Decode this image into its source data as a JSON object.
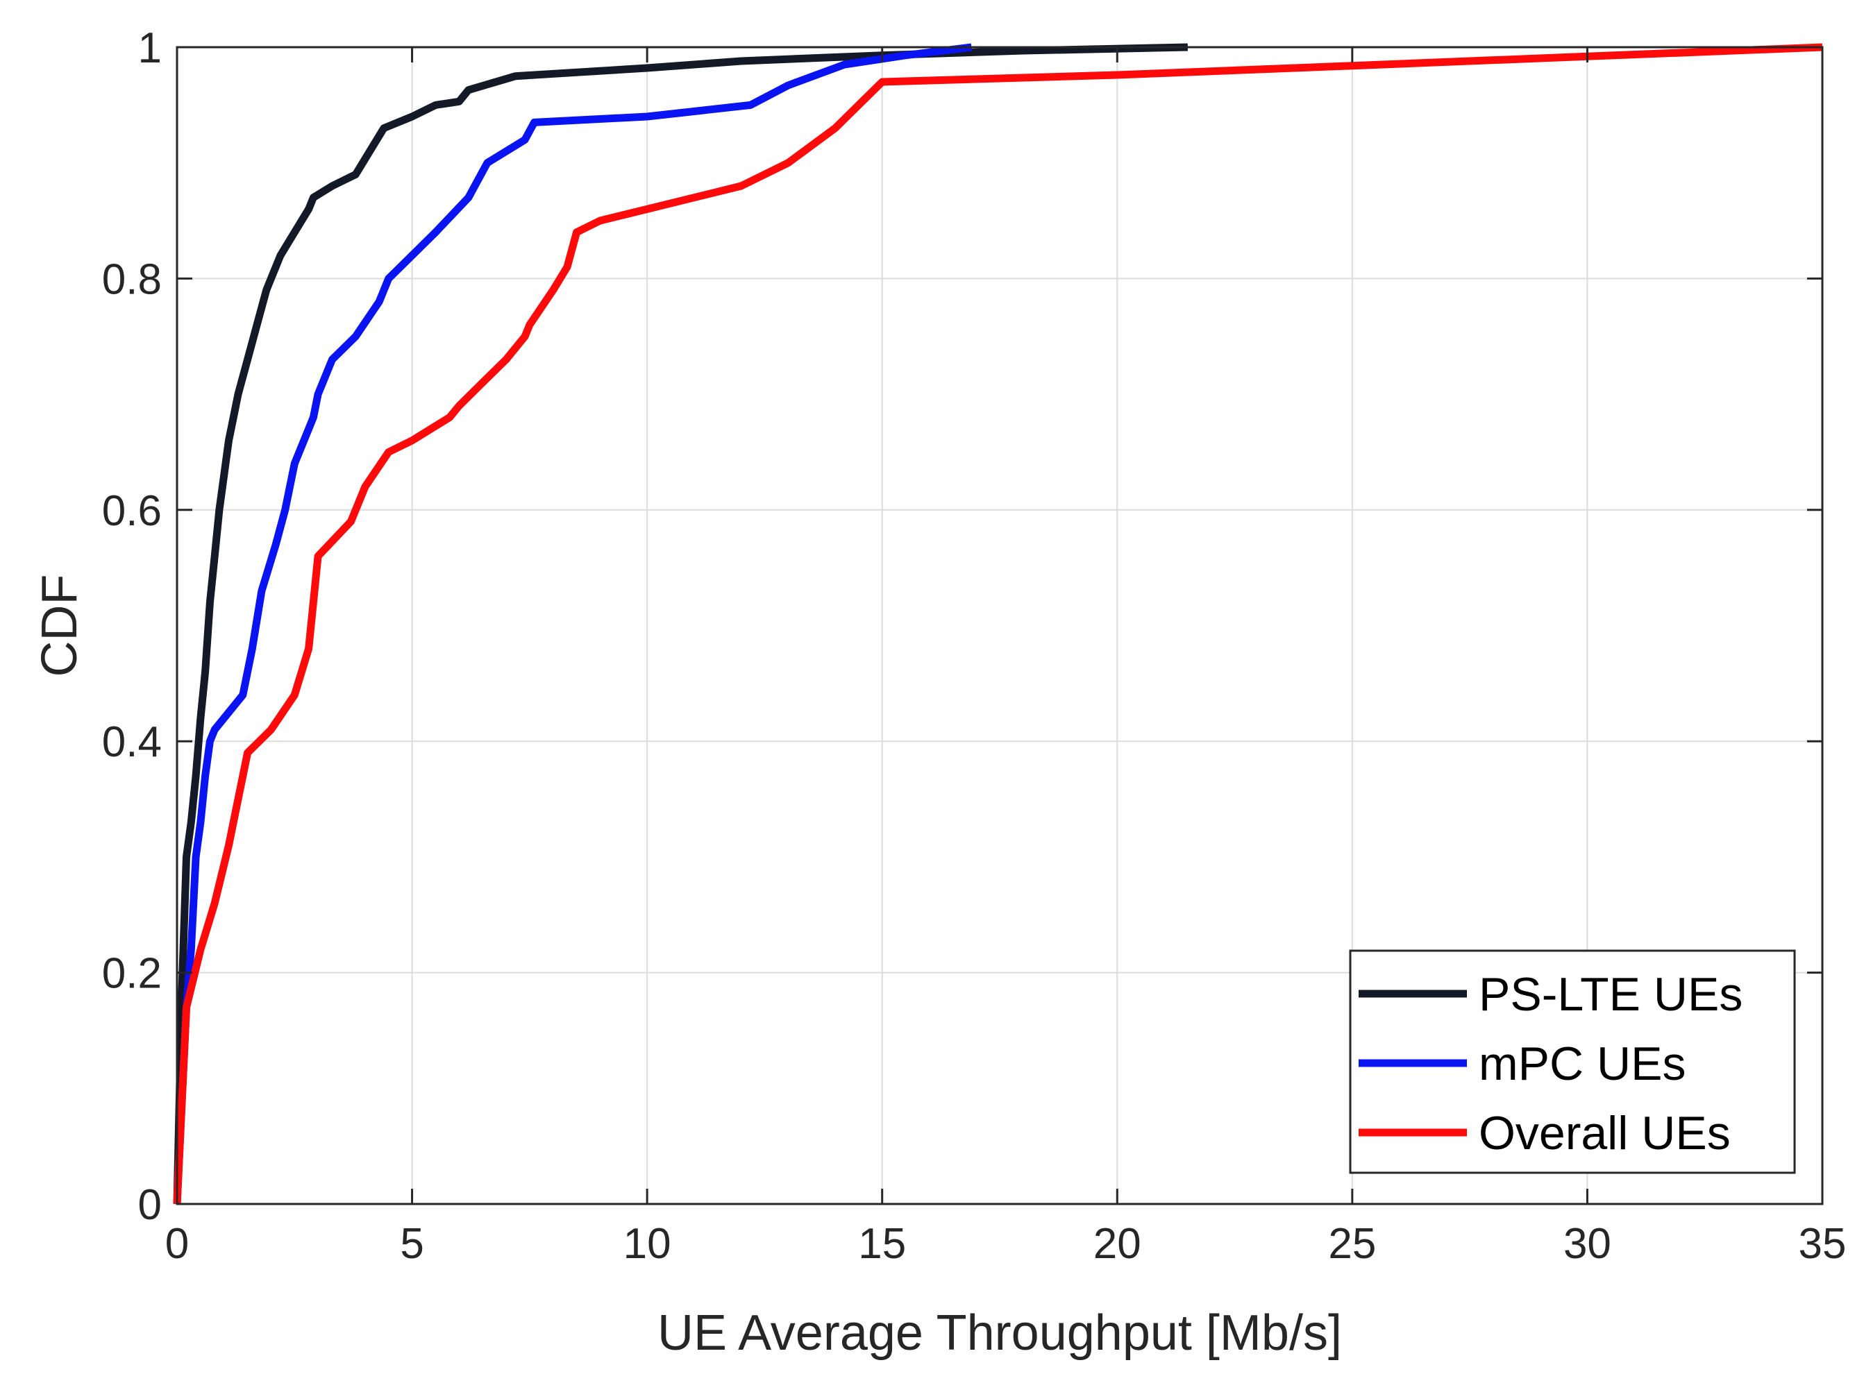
{
  "chart_data": {
    "type": "line",
    "title": "",
    "xlabel": "UE Average Throughput [Mb/s]",
    "ylabel": "CDF",
    "xlim": [
      0,
      35
    ],
    "ylim": [
      0,
      1
    ],
    "xticks": [
      0,
      5,
      10,
      15,
      20,
      25,
      30,
      35
    ],
    "yticks": [
      0,
      0.2,
      0.4,
      0.6,
      0.8,
      1
    ],
    "xtick_labels": [
      "0",
      "5",
      "10",
      "15",
      "20",
      "25",
      "30",
      "35"
    ],
    "ytick_labels": [
      "0",
      "0.2",
      "0.4",
      "0.6",
      "0.8",
      "1"
    ],
    "grid": true,
    "legend_position": "bottom-right",
    "series": [
      {
        "name": "PS-LTE UEs",
        "color": "#141927",
        "x": [
          0,
          0.1,
          0.2,
          0.3,
          0.4,
          0.5,
          0.6,
          0.7,
          0.8,
          0.9,
          1.0,
          1.1,
          1.2,
          1.3,
          1.5,
          1.7,
          1.9,
          2.0,
          2.2,
          2.5,
          2.8,
          2.9,
          3.3,
          3.8,
          4.1,
          4.4,
          5.0,
          5.5,
          6.0,
          6.2,
          7.2,
          10.0,
          12.0,
          15.0,
          18.0,
          21.5
        ],
        "y": [
          0,
          0.18,
          0.3,
          0.33,
          0.37,
          0.42,
          0.46,
          0.52,
          0.56,
          0.6,
          0.63,
          0.66,
          0.68,
          0.7,
          0.73,
          0.76,
          0.79,
          0.8,
          0.82,
          0.84,
          0.86,
          0.87,
          0.88,
          0.89,
          0.91,
          0.93,
          0.94,
          0.95,
          0.953,
          0.963,
          0.975,
          0.982,
          0.988,
          0.993,
          0.997,
          1.0
        ]
      },
      {
        "name": "mPC UEs",
        "color": "#0A14F2",
        "x": [
          0,
          0.2,
          0.3,
          0.4,
          0.5,
          0.6,
          0.7,
          0.8,
          1.0,
          1.4,
          1.6,
          1.8,
          2.1,
          2.3,
          2.5,
          2.9,
          3.0,
          3.3,
          3.8,
          4.3,
          4.5,
          5.0,
          5.5,
          6.2,
          6.6,
          7.4,
          7.6,
          10.0,
          12.2,
          13.0,
          14.2,
          15.5,
          16.9
        ],
        "y": [
          0,
          0.17,
          0.22,
          0.3,
          0.33,
          0.37,
          0.4,
          0.41,
          0.42,
          0.44,
          0.48,
          0.53,
          0.57,
          0.6,
          0.64,
          0.68,
          0.7,
          0.73,
          0.75,
          0.78,
          0.8,
          0.82,
          0.84,
          0.87,
          0.9,
          0.92,
          0.935,
          0.94,
          0.95,
          0.967,
          0.985,
          0.993,
          1.0
        ]
      },
      {
        "name": "Overall UEs",
        "color": "#FF0A0A",
        "x": [
          0,
          0.2,
          0.5,
          0.8,
          1.1,
          1.3,
          1.5,
          2.0,
          2.5,
          2.8,
          3.0,
          3.7,
          4.0,
          4.5,
          5.0,
          5.8,
          6.0,
          6.5,
          7.0,
          7.4,
          7.5,
          8.0,
          8.3,
          8.5,
          9.0,
          10.0,
          11.0,
          12.0,
          13.0,
          14.0,
          15.0,
          20.0,
          25.0,
          30.0,
          35.0
        ],
        "y": [
          0,
          0.17,
          0.22,
          0.26,
          0.31,
          0.35,
          0.39,
          0.41,
          0.44,
          0.48,
          0.56,
          0.59,
          0.62,
          0.65,
          0.66,
          0.68,
          0.69,
          0.71,
          0.73,
          0.75,
          0.76,
          0.79,
          0.81,
          0.84,
          0.85,
          0.86,
          0.87,
          0.88,
          0.9,
          0.93,
          0.97,
          0.976,
          0.984,
          0.992,
          1.0
        ]
      }
    ]
  }
}
